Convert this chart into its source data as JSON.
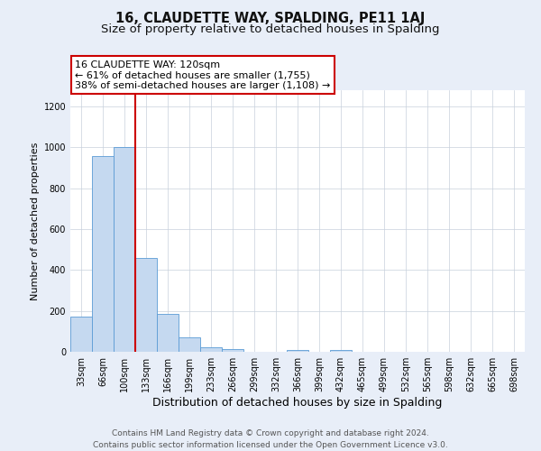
{
  "title": "16, CLAUDETTE WAY, SPALDING, PE11 1AJ",
  "subtitle": "Size of property relative to detached houses in Spalding",
  "xlabel": "Distribution of detached houses by size in Spalding",
  "ylabel": "Number of detached properties",
  "bar_labels": [
    "33sqm",
    "66sqm",
    "100sqm",
    "133sqm",
    "166sqm",
    "199sqm",
    "233sqm",
    "266sqm",
    "299sqm",
    "332sqm",
    "366sqm",
    "399sqm",
    "432sqm",
    "465sqm",
    "499sqm",
    "532sqm",
    "565sqm",
    "598sqm",
    "632sqm",
    "665sqm",
    "698sqm"
  ],
  "bar_values": [
    170,
    960,
    1000,
    460,
    185,
    70,
    22,
    15,
    0,
    0,
    10,
    0,
    10,
    0,
    0,
    0,
    0,
    0,
    0,
    0,
    0
  ],
  "bar_color": "#c5d9f0",
  "bar_edge_color": "#5b9bd5",
  "vline_color": "#cc0000",
  "vline_x_index": 2,
  "annotation_title": "16 CLAUDETTE WAY: 120sqm",
  "annotation_line1": "← 61% of detached houses are smaller (1,755)",
  "annotation_line2": "38% of semi-detached houses are larger (1,108) →",
  "annotation_box_facecolor": "#ffffff",
  "annotation_box_edgecolor": "#cc0000",
  "footer_line1": "Contains HM Land Registry data © Crown copyright and database right 2024.",
  "footer_line2": "Contains public sector information licensed under the Open Government Licence v3.0.",
  "fig_facecolor": "#e8eef8",
  "plot_facecolor": "#ffffff",
  "ylim": [
    0,
    1280
  ],
  "yticks": [
    0,
    200,
    400,
    600,
    800,
    1000,
    1200
  ],
  "title_fontsize": 10.5,
  "subtitle_fontsize": 9.5,
  "xlabel_fontsize": 9,
  "ylabel_fontsize": 8,
  "tick_fontsize": 7,
  "annotation_fontsize": 8,
  "footer_fontsize": 6.5
}
